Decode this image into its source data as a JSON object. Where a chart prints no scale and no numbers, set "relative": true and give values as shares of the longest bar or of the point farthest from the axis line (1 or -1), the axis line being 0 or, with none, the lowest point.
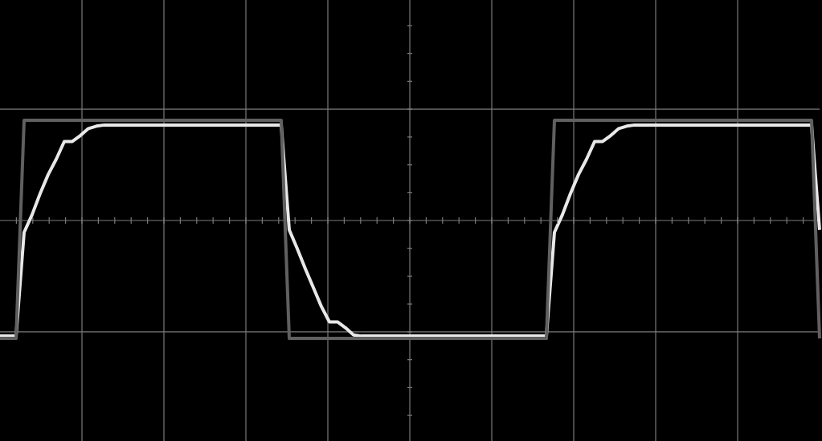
{
  "chart_data": {
    "type": "line",
    "relative": true,
    "grid": true,
    "marker": "none",
    "line_style": "solid",
    "categories": [
      null,
      null,
      null,
      null,
      null,
      null,
      null,
      null,
      null,
      null,
      null,
      null,
      null,
      null,
      null,
      null,
      null,
      null,
      null,
      null,
      null,
      null,
      null,
      null,
      null,
      null,
      null,
      null,
      null,
      null,
      null,
      null,
      null,
      null,
      null,
      null,
      null,
      null,
      null,
      null,
      null,
      null,
      null,
      null,
      null,
      null,
      null,
      null,
      null,
      null,
      null,
      null,
      null,
      null,
      null,
      null,
      null,
      null,
      null,
      null,
      null,
      null,
      null,
      null,
      null,
      null,
      null,
      null,
      null,
      null,
      null,
      null,
      null,
      null,
      null,
      null,
      null,
      null,
      null,
      null,
      null,
      null,
      null,
      null,
      null,
      null,
      null,
      null,
      null,
      null,
      null,
      null,
      null,
      null,
      null,
      null,
      null,
      null,
      null,
      null,
      null,
      null,
      null
    ],
    "series": [
      {
        "color": "#606060",
        "values": [
          -1,
          -1,
          -1,
          0.85,
          0.85,
          0.85,
          0.85,
          0.85,
          0.85,
          0.85,
          0.85,
          0.85,
          0.85,
          0.85,
          0.85,
          0.85,
          0.85,
          0.85,
          0.85,
          0.85,
          0.85,
          0.85,
          0.85,
          0.85,
          0.85,
          0.85,
          0.85,
          0.85,
          0.85,
          0.85,
          0.85,
          0.85,
          0.85,
          0.85,
          0.85,
          0.85,
          -1,
          -1,
          -1,
          -1,
          -1,
          -1,
          -1,
          -1,
          -1,
          -1,
          -1,
          -1,
          -1,
          -1,
          -1,
          -1,
          -1,
          -1,
          -1,
          -1,
          -1,
          -1,
          -1,
          -1,
          -1,
          -1,
          -1,
          -1,
          -1,
          -1,
          -1,
          -1,
          -1,
          0.85,
          0.85,
          0.85,
          0.85,
          0.85,
          0.85,
          0.85,
          0.85,
          0.85,
          0.85,
          0.85,
          0.85,
          0.85,
          0.85,
          0.85,
          0.85,
          0.85,
          0.85,
          0.85,
          0.85,
          0.85,
          0.85,
          0.85,
          0.85,
          0.85,
          0.85,
          0.85,
          0.85,
          0.85,
          0.85,
          0.85,
          0.85,
          0.85,
          -1
        ]
      },
      {
        "color": "#e8e8e8",
        "values": [
          -0.98,
          -0.98,
          -0.98,
          -0.1,
          0.05,
          0.23,
          0.39,
          0.52,
          0.67,
          0.67,
          0.72,
          0.78,
          0.8,
          0.81,
          0.81,
          0.81,
          0.81,
          0.81,
          0.81,
          0.81,
          0.81,
          0.81,
          0.81,
          0.81,
          0.81,
          0.81,
          0.81,
          0.81,
          0.81,
          0.81,
          0.81,
          0.81,
          0.81,
          0.81,
          0.81,
          0.81,
          -0.08,
          -0.24,
          -0.41,
          -0.57,
          -0.73,
          -0.86,
          -0.86,
          -0.91,
          -0.97,
          -0.98,
          -0.98,
          -0.98,
          -0.98,
          -0.98,
          -0.98,
          -0.98,
          -0.98,
          -0.98,
          -0.98,
          -0.98,
          -0.98,
          -0.98,
          -0.98,
          -0.98,
          -0.98,
          -0.98,
          -0.98,
          -0.98,
          -0.98,
          -0.98,
          -0.98,
          -0.98,
          -0.98,
          -0.1,
          0.05,
          0.23,
          0.39,
          0.52,
          0.67,
          0.67,
          0.72,
          0.78,
          0.8,
          0.81,
          0.81,
          0.81,
          0.81,
          0.81,
          0.81,
          0.81,
          0.81,
          0.81,
          0.81,
          0.81,
          0.81,
          0.81,
          0.81,
          0.81,
          0.81,
          0.81,
          0.81,
          0.81,
          0.81,
          0.81,
          0.81,
          0.81,
          -0.08
        ]
      }
    ]
  }
}
